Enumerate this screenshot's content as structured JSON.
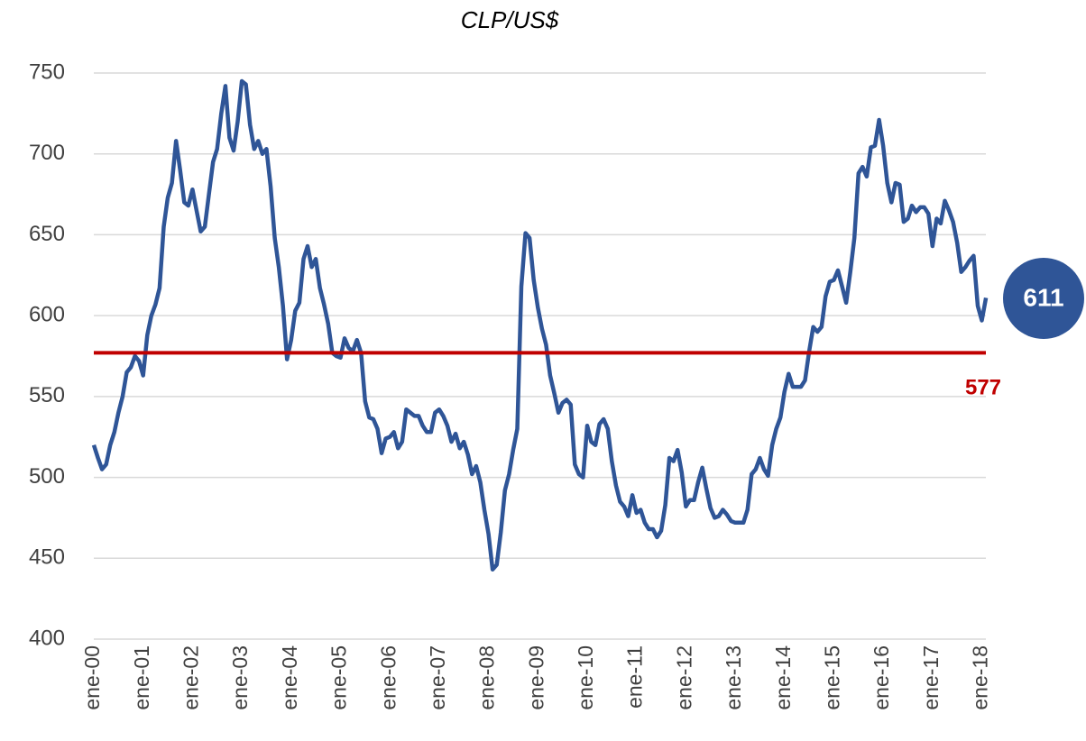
{
  "chart_data": {
    "type": "line",
    "title": "CLP/US$",
    "categories": [
      "ene-00",
      null,
      null,
      null,
      null,
      null,
      null,
      null,
      null,
      null,
      null,
      null,
      "ene-01",
      null,
      null,
      null,
      null,
      null,
      null,
      null,
      null,
      null,
      null,
      null,
      "ene-02",
      null,
      null,
      null,
      null,
      null,
      null,
      null,
      null,
      null,
      null,
      null,
      "ene-03",
      null,
      null,
      null,
      null,
      null,
      null,
      null,
      null,
      null,
      null,
      null,
      "ene-04",
      null,
      null,
      null,
      null,
      null,
      null,
      null,
      null,
      null,
      null,
      null,
      "ene-05",
      null,
      null,
      null,
      null,
      null,
      null,
      null,
      null,
      null,
      null,
      null,
      "ene-06",
      null,
      null,
      null,
      null,
      null,
      null,
      null,
      null,
      null,
      null,
      null,
      "ene-07",
      null,
      null,
      null,
      null,
      null,
      null,
      null,
      null,
      null,
      null,
      null,
      "ene-08",
      null,
      null,
      null,
      null,
      null,
      null,
      null,
      null,
      null,
      null,
      null,
      "ene-09",
      null,
      null,
      null,
      null,
      null,
      null,
      null,
      null,
      null,
      null,
      null,
      "ene-10",
      null,
      null,
      null,
      null,
      null,
      null,
      null,
      null,
      null,
      null,
      null,
      "ene-11",
      null,
      null,
      null,
      null,
      null,
      null,
      null,
      null,
      null,
      null,
      null,
      "ene-12",
      null,
      null,
      null,
      null,
      null,
      null,
      null,
      null,
      null,
      null,
      null,
      "ene-13",
      null,
      null,
      null,
      null,
      null,
      null,
      null,
      null,
      null,
      null,
      null,
      "ene-14",
      null,
      null,
      null,
      null,
      null,
      null,
      null,
      null,
      null,
      null,
      null,
      "ene-15",
      null,
      null,
      null,
      null,
      null,
      null,
      null,
      null,
      null,
      null,
      null,
      "ene-16",
      null,
      null,
      null,
      null,
      null,
      null,
      null,
      null,
      null,
      null,
      null,
      "ene-17",
      null,
      null,
      null,
      null,
      null,
      null,
      null,
      null,
      null,
      null,
      null,
      "ene-18",
      null
    ],
    "values": [
      520,
      512,
      505,
      508,
      520,
      528,
      540,
      550,
      565,
      568,
      575,
      572,
      563,
      588,
      600,
      607,
      617,
      655,
      673,
      682,
      708,
      690,
      670,
      668,
      678,
      665,
      652,
      655,
      675,
      695,
      703,
      725,
      742,
      710,
      702,
      720,
      745,
      743,
      718,
      703,
      708,
      700,
      703,
      680,
      648,
      630,
      606,
      573,
      585,
      603,
      608,
      635,
      643,
      630,
      635,
      617,
      607,
      595,
      577,
      575,
      574,
      586,
      580,
      578,
      585,
      577,
      547,
      537,
      536,
      530,
      515,
      524,
      525,
      528,
      518,
      522,
      542,
      540,
      538,
      538,
      532,
      528,
      528,
      540,
      542,
      538,
      532,
      522,
      527,
      518,
      522,
      514,
      502,
      507,
      497,
      480,
      465,
      443,
      446,
      466,
      492,
      502,
      517,
      530,
      618,
      651,
      648,
      622,
      605,
      592,
      582,
      563,
      552,
      540,
      546,
      548,
      545,
      508,
      502,
      500,
      532,
      522,
      520,
      533,
      536,
      530,
      510,
      495,
      485,
      482,
      476,
      489,
      478,
      480,
      472,
      468,
      468,
      463,
      467,
      483,
      512,
      510,
      517,
      503,
      482,
      486,
      486,
      497,
      506,
      493,
      481,
      475,
      476,
      480,
      477,
      473,
      472,
      472,
      472,
      480,
      502,
      505,
      512,
      505,
      501,
      520,
      530,
      537,
      553,
      564,
      556,
      556,
      556,
      560,
      578,
      593,
      590,
      593,
      612,
      621,
      622,
      628,
      618,
      608,
      627,
      648,
      688,
      692,
      686,
      704,
      705,
      721,
      705,
      682,
      670,
      682,
      681,
      658,
      660,
      668,
      664,
      667,
      667,
      663,
      643,
      660,
      657,
      671,
      665,
      658,
      645,
      627,
      630,
      634,
      637,
      606,
      597,
      611
    ],
    "color": "#2f5597",
    "ylim": [
      400,
      750
    ],
    "yticks": [
      400,
      450,
      500,
      550,
      600,
      650,
      700,
      750
    ],
    "grid": true,
    "reference_line": {
      "value": 577,
      "color": "#c00000"
    }
  }
}
